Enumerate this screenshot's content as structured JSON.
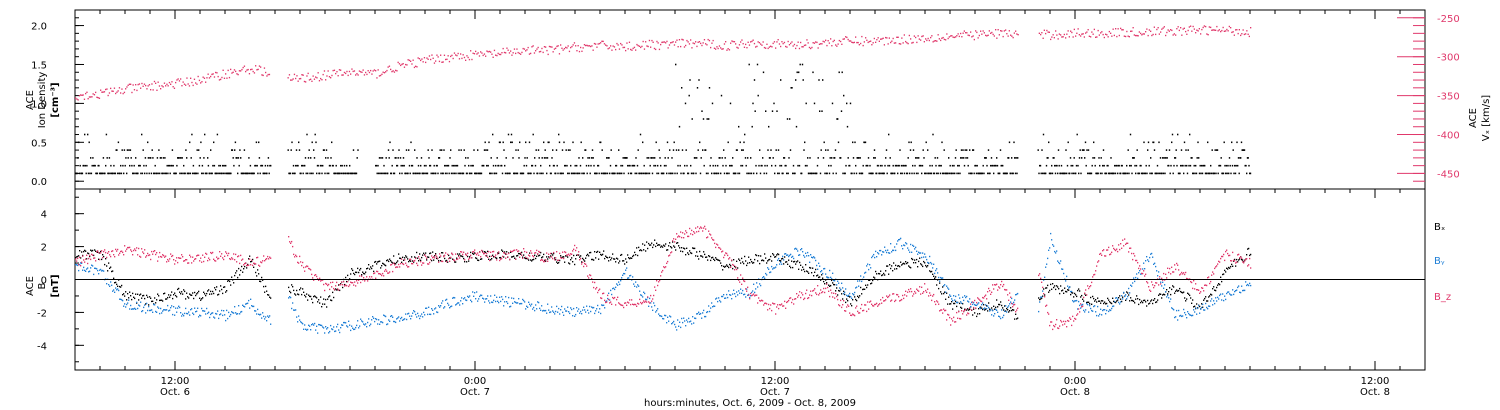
{
  "chart_data": [
    {
      "type": "scatter",
      "ylabel_left": [
        "ACE",
        "Ion Density",
        "[cm⁻³]"
      ],
      "ylabel_right": [
        "ACE",
        "Vₓ [km/s]"
      ],
      "x_range_hours": [
        8,
        62
      ],
      "ylim_left": [
        -0.1,
        2.2
      ],
      "yticks_left": [
        "0.0",
        "0.5",
        "1.0",
        "1.5",
        "2.0"
      ],
      "ylim_right": [
        -470,
        -240
      ],
      "yticks_right": [
        "-250",
        "-300",
        "-350",
        "-400",
        "-450"
      ],
      "series": [
        {
          "name": "Ion Density",
          "color": "#000000",
          "axis": "left",
          "levels": [
            0.1,
            0.2,
            0.3,
            0.4,
            0.5,
            0.6
          ],
          "segments": [
            [
              8,
              15.8
            ],
            [
              16.5,
              19.3
            ],
            [
              20,
              45.7
            ],
            [
              46.5,
              55
            ]
          ]
        },
        {
          "name": "Vx",
          "color": "#e0386b",
          "axis": "right",
          "x": [
            8,
            9,
            10,
            11,
            12,
            13,
            14,
            15,
            15.5,
            16,
            17,
            18,
            19,
            20,
            21,
            22,
            23,
            24,
            25,
            26,
            27,
            28,
            29,
            30,
            31,
            32,
            33,
            34,
            35,
            36,
            37,
            38,
            39,
            40,
            41,
            42,
            43,
            44,
            45,
            45.5,
            46,
            47,
            48,
            49,
            50,
            51,
            52,
            53,
            54,
            55
          ],
          "y": [
            -350,
            -348,
            -342,
            -338,
            -335,
            -330,
            -322,
            -316,
            -318,
            -330,
            -328,
            -324,
            -320,
            -322,
            -312,
            -305,
            -300,
            -298,
            -296,
            -292,
            -292,
            -288,
            -286,
            -287,
            -285,
            -284,
            -283,
            -286,
            -282,
            -284,
            -285,
            -282,
            -280,
            -280,
            -278,
            -276,
            -274,
            -272,
            -270,
            -271,
            -272,
            -272,
            -270,
            -270,
            -269,
            -268,
            -267,
            -266,
            -266,
            -268
          ]
        }
      ]
    },
    {
      "type": "scatter",
      "ylabel": [
        "ACE",
        "B",
        "[nT]"
      ],
      "x_range_hours": [
        8,
        62
      ],
      "ylim": [
        -5.5,
        5.5
      ],
      "yticks": [
        "4",
        "2",
        "0",
        "-2",
        "-4"
      ],
      "legend": [
        "Bₓ",
        "Bᵧ",
        "B_z"
      ],
      "series": [
        {
          "name": "Bx",
          "color": "#000000",
          "x": [
            8,
            9,
            10,
            11,
            12,
            13,
            14,
            15,
            15.8,
            16.5,
            17,
            18,
            19,
            20,
            21,
            22,
            23,
            24,
            25,
            26,
            27,
            28,
            29,
            30,
            31,
            32,
            33,
            34,
            35,
            36,
            37,
            38,
            39,
            40,
            41,
            42,
            43,
            44,
            45,
            45.7,
            46.5,
            47,
            48,
            49,
            50,
            51,
            52,
            53,
            54,
            55
          ],
          "y": [
            1.6,
            1.5,
            -1.0,
            -1.3,
            -0.8,
            -1.0,
            -0.5,
            1.2,
            -1.2,
            -0.5,
            -0.8,
            -1.5,
            0.4,
            0.8,
            1.3,
            1.4,
            1.3,
            1.4,
            1.5,
            1.4,
            1.3,
            1.2,
            1.5,
            1.2,
            2.2,
            2.0,
            1.5,
            0.8,
            1.2,
            1.3,
            0.8,
            0.0,
            -1.4,
            0.2,
            1.0,
            1.0,
            -1.5,
            -2.0,
            -1.4,
            -2.4,
            -1.0,
            -0.5,
            -0.8,
            -1.5,
            -1.0,
            -1.5,
            -0.5,
            -1.8,
            0.5,
            1.7
          ]
        },
        {
          "name": "By",
          "color": "#1f7fd6",
          "x": [
            8,
            9,
            10,
            11,
            12,
            13,
            14,
            15,
            15.8,
            16.5,
            17,
            18,
            19,
            20,
            21,
            22,
            23,
            24,
            25,
            26,
            27,
            28,
            29,
            30,
            31,
            32,
            33,
            34,
            35,
            36,
            37,
            38,
            39,
            40,
            41,
            42,
            43,
            44,
            45,
            45.7,
            46.5,
            47,
            48,
            49,
            50,
            51,
            52,
            53,
            54,
            55
          ],
          "y": [
            0.8,
            0.5,
            -1.5,
            -1.8,
            -1.9,
            -2.0,
            -2.2,
            -1.5,
            -2.5,
            -1.0,
            -2.8,
            -3.1,
            -2.8,
            -2.5,
            -2.4,
            -2.0,
            -1.4,
            -1.0,
            -1.3,
            -1.5,
            -1.8,
            -2.0,
            -1.8,
            0.5,
            -1.5,
            -2.8,
            -2.2,
            -1.0,
            -0.8,
            1.0,
            1.8,
            0.5,
            -1.0,
            1.5,
            2.2,
            1.5,
            -1.0,
            -1.5,
            -2.2,
            -1.0,
            -2.2,
            2.5,
            -1.5,
            -2.0,
            -1.0,
            1.5,
            -2.2,
            -1.8,
            -1.0,
            -0.2
          ]
        },
        {
          "name": "Bz",
          "color": "#e0386b",
          "x": [
            8,
            9,
            10,
            11,
            12,
            13,
            14,
            15,
            15.8,
            16.5,
            17,
            18,
            19,
            20,
            21,
            22,
            23,
            24,
            25,
            26,
            27,
            28,
            29,
            30,
            31,
            32,
            33,
            34,
            35,
            36,
            37,
            38,
            39,
            40,
            41,
            42,
            43,
            44,
            45,
            45.7,
            46.5,
            47,
            48,
            49,
            50,
            51,
            52,
            53,
            54,
            55
          ],
          "y": [
            1.0,
            1.5,
            1.8,
            1.5,
            1.2,
            1.3,
            1.5,
            1.0,
            1.2,
            2.4,
            1.0,
            -0.5,
            -0.2,
            0.2,
            1.0,
            1.2,
            1.4,
            1.5,
            1.4,
            1.6,
            1.3,
            1.8,
            -1.0,
            -1.5,
            -1.2,
            2.5,
            3.2,
            1.5,
            -1.0,
            -1.8,
            -1.0,
            -0.5,
            -2.0,
            -1.5,
            -1.0,
            -0.5,
            -2.5,
            -1.5,
            -0.2,
            -2.0,
            0.5,
            -2.8,
            -2.5,
            1.5,
            2.2,
            -0.5,
            0.8,
            -0.8,
            1.5,
            1.0
          ]
        }
      ]
    }
  ],
  "xaxis": {
    "ticks": [
      {
        "hour": 12,
        "time": "12:00",
        "day": "Oct. 6"
      },
      {
        "hour": 24,
        "time": "0:00",
        "day": "Oct. 7"
      },
      {
        "hour": 36,
        "time": "12:00",
        "day": "Oct. 7"
      },
      {
        "hour": 48,
        "time": "0:00",
        "day": "Oct. 8"
      },
      {
        "hour": 60,
        "time": "12:00",
        "day": "Oct. 8"
      }
    ],
    "title": "hours:minutes, Oct.  6, 2009 - Oct.  8, 2009"
  },
  "colors": {
    "black": "#000000",
    "blue": "#1f7fd6",
    "pink": "#e0386b"
  }
}
